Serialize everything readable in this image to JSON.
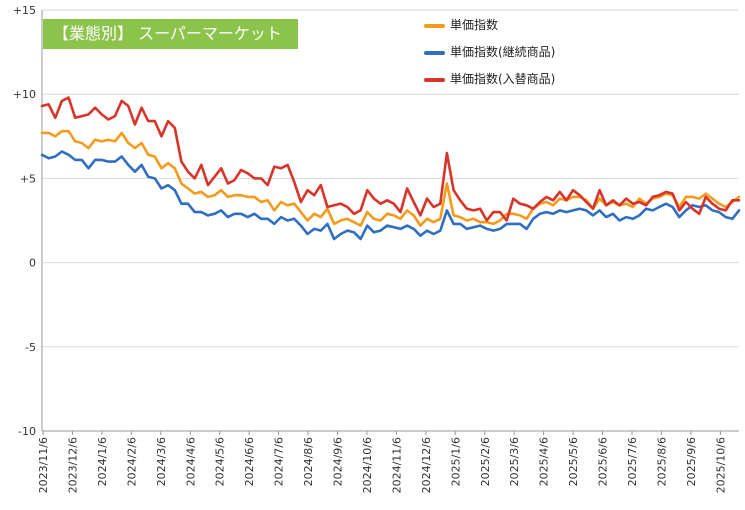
{
  "chart_data": {
    "type": "line",
    "badge_text": "【業態別】 スーパーマーケット",
    "ylim": [
      -10,
      15
    ],
    "y_ticks": [
      "+15",
      "+10",
      "+5",
      "0",
      "-5",
      "-10"
    ],
    "x_ticks": [
      "2023/11/6",
      "2023/12/6",
      "2024/1/6",
      "2024/2/6",
      "2024/3/6",
      "2024/4/6",
      "2024/5/6",
      "2024/6/6",
      "2024/7/6",
      "2024/8/6",
      "2024/9/6",
      "2024/10/6",
      "2024/11/6",
      "2024/12/6",
      "2025/1/6",
      "2025/2/6",
      "2025/3/6",
      "2025/4/6",
      "2025/5/6",
      "2025/6/6",
      "2025/7/6",
      "2025/8/6",
      "2025/9/6",
      "2025/10/6"
    ],
    "grid": "horizontal",
    "legend_position": "top-right",
    "series": [
      {
        "name": "単価指数",
        "color": "#f59a1b",
        "values": [
          7.7,
          7.7,
          7.5,
          7.8,
          7.8,
          7.2,
          7.1,
          6.8,
          7.3,
          7.2,
          7.3,
          7.2,
          7.7,
          7.1,
          6.8,
          7.1,
          6.4,
          6.3,
          5.6,
          5.9,
          5.6,
          4.7,
          4.4,
          4.1,
          4.2,
          3.9,
          4.0,
          4.3,
          3.9,
          4.0,
          4.0,
          3.9,
          3.9,
          3.6,
          3.7,
          3.1,
          3.6,
          3.4,
          3.5,
          3.0,
          2.5,
          2.9,
          2.7,
          3.2,
          2.3,
          2.5,
          2.6,
          2.4,
          2.2,
          3.0,
          2.6,
          2.5,
          2.9,
          2.8,
          2.6,
          3.1,
          2.8,
          2.2,
          2.6,
          2.4,
          2.6,
          4.7,
          2.8,
          2.7,
          2.5,
          2.6,
          2.4,
          2.4,
          2.3,
          2.5,
          2.9,
          2.9,
          2.8,
          2.6,
          3.2,
          3.5,
          3.6,
          3.4,
          3.8,
          3.7,
          3.9,
          3.9,
          3.7,
          3.2,
          3.8,
          3.4,
          3.6,
          3.4,
          3.5,
          3.3,
          3.8,
          3.5,
          3.8,
          3.9,
          4.1,
          4.0,
          3.3,
          3.9,
          3.9,
          3.8,
          4.1,
          3.8,
          3.5,
          3.3,
          3.6,
          3.9
        ]
      },
      {
        "name": "単価指数(継続商品)",
        "color": "#2f6ec2",
        "values": [
          6.4,
          6.2,
          6.3,
          6.6,
          6.4,
          6.1,
          6.1,
          5.6,
          6.1,
          6.1,
          6.0,
          6.0,
          6.3,
          5.8,
          5.4,
          5.8,
          5.1,
          5.0,
          4.4,
          4.6,
          4.3,
          3.5,
          3.5,
          3.0,
          3.0,
          2.8,
          2.9,
          3.1,
          2.7,
          2.9,
          2.9,
          2.7,
          2.9,
          2.6,
          2.6,
          2.3,
          2.7,
          2.5,
          2.6,
          2.2,
          1.7,
          2.0,
          1.9,
          2.3,
          1.4,
          1.7,
          1.9,
          1.8,
          1.4,
          2.2,
          1.8,
          1.9,
          2.2,
          2.1,
          2.0,
          2.2,
          2.0,
          1.6,
          1.9,
          1.7,
          1.9,
          3.1,
          2.3,
          2.3,
          2.0,
          2.1,
          2.2,
          2.0,
          1.9,
          2.0,
          2.3,
          2.3,
          2.3,
          2.0,
          2.6,
          2.9,
          3.0,
          2.9,
          3.1,
          3.0,
          3.1,
          3.2,
          3.1,
          2.8,
          3.1,
          2.7,
          2.9,
          2.5,
          2.7,
          2.6,
          2.8,
          3.2,
          3.1,
          3.3,
          3.5,
          3.3,
          2.7,
          3.1,
          3.4,
          3.3,
          3.4,
          3.1,
          3.0,
          2.7,
          2.6,
          3.1
        ]
      },
      {
        "name": "単価指数(入替商品)",
        "color": "#d8342a",
        "values": [
          9.3,
          9.4,
          8.6,
          9.6,
          9.8,
          8.6,
          8.7,
          8.8,
          9.2,
          8.8,
          8.5,
          8.7,
          9.6,
          9.3,
          8.2,
          9.2,
          8.4,
          8.4,
          7.5,
          8.4,
          8.0,
          6.0,
          5.4,
          5.0,
          5.8,
          4.6,
          5.1,
          5.6,
          4.7,
          4.9,
          5.5,
          5.3,
          5.0,
          5.0,
          4.6,
          5.7,
          5.6,
          5.8,
          4.8,
          3.6,
          4.3,
          4.0,
          4.6,
          3.3,
          3.4,
          3.5,
          3.3,
          2.9,
          3.1,
          4.3,
          3.8,
          3.5,
          3.7,
          3.5,
          3.0,
          4.4,
          3.6,
          2.8,
          3.8,
          3.3,
          3.5,
          6.5,
          4.3,
          3.7,
          3.2,
          3.1,
          3.2,
          2.5,
          3.0,
          3.0,
          2.5,
          3.8,
          3.5,
          3.4,
          3.2,
          3.6,
          3.9,
          3.7,
          4.2,
          3.7,
          4.3,
          4.0,
          3.6,
          3.2,
          4.3,
          3.4,
          3.7,
          3.4,
          3.8,
          3.5,
          3.6,
          3.4,
          3.9,
          4.0,
          4.2,
          4.1,
          3.1,
          3.6,
          3.2,
          2.9,
          3.9,
          3.5,
          3.2,
          3.1,
          3.7,
          3.7
        ]
      }
    ]
  }
}
